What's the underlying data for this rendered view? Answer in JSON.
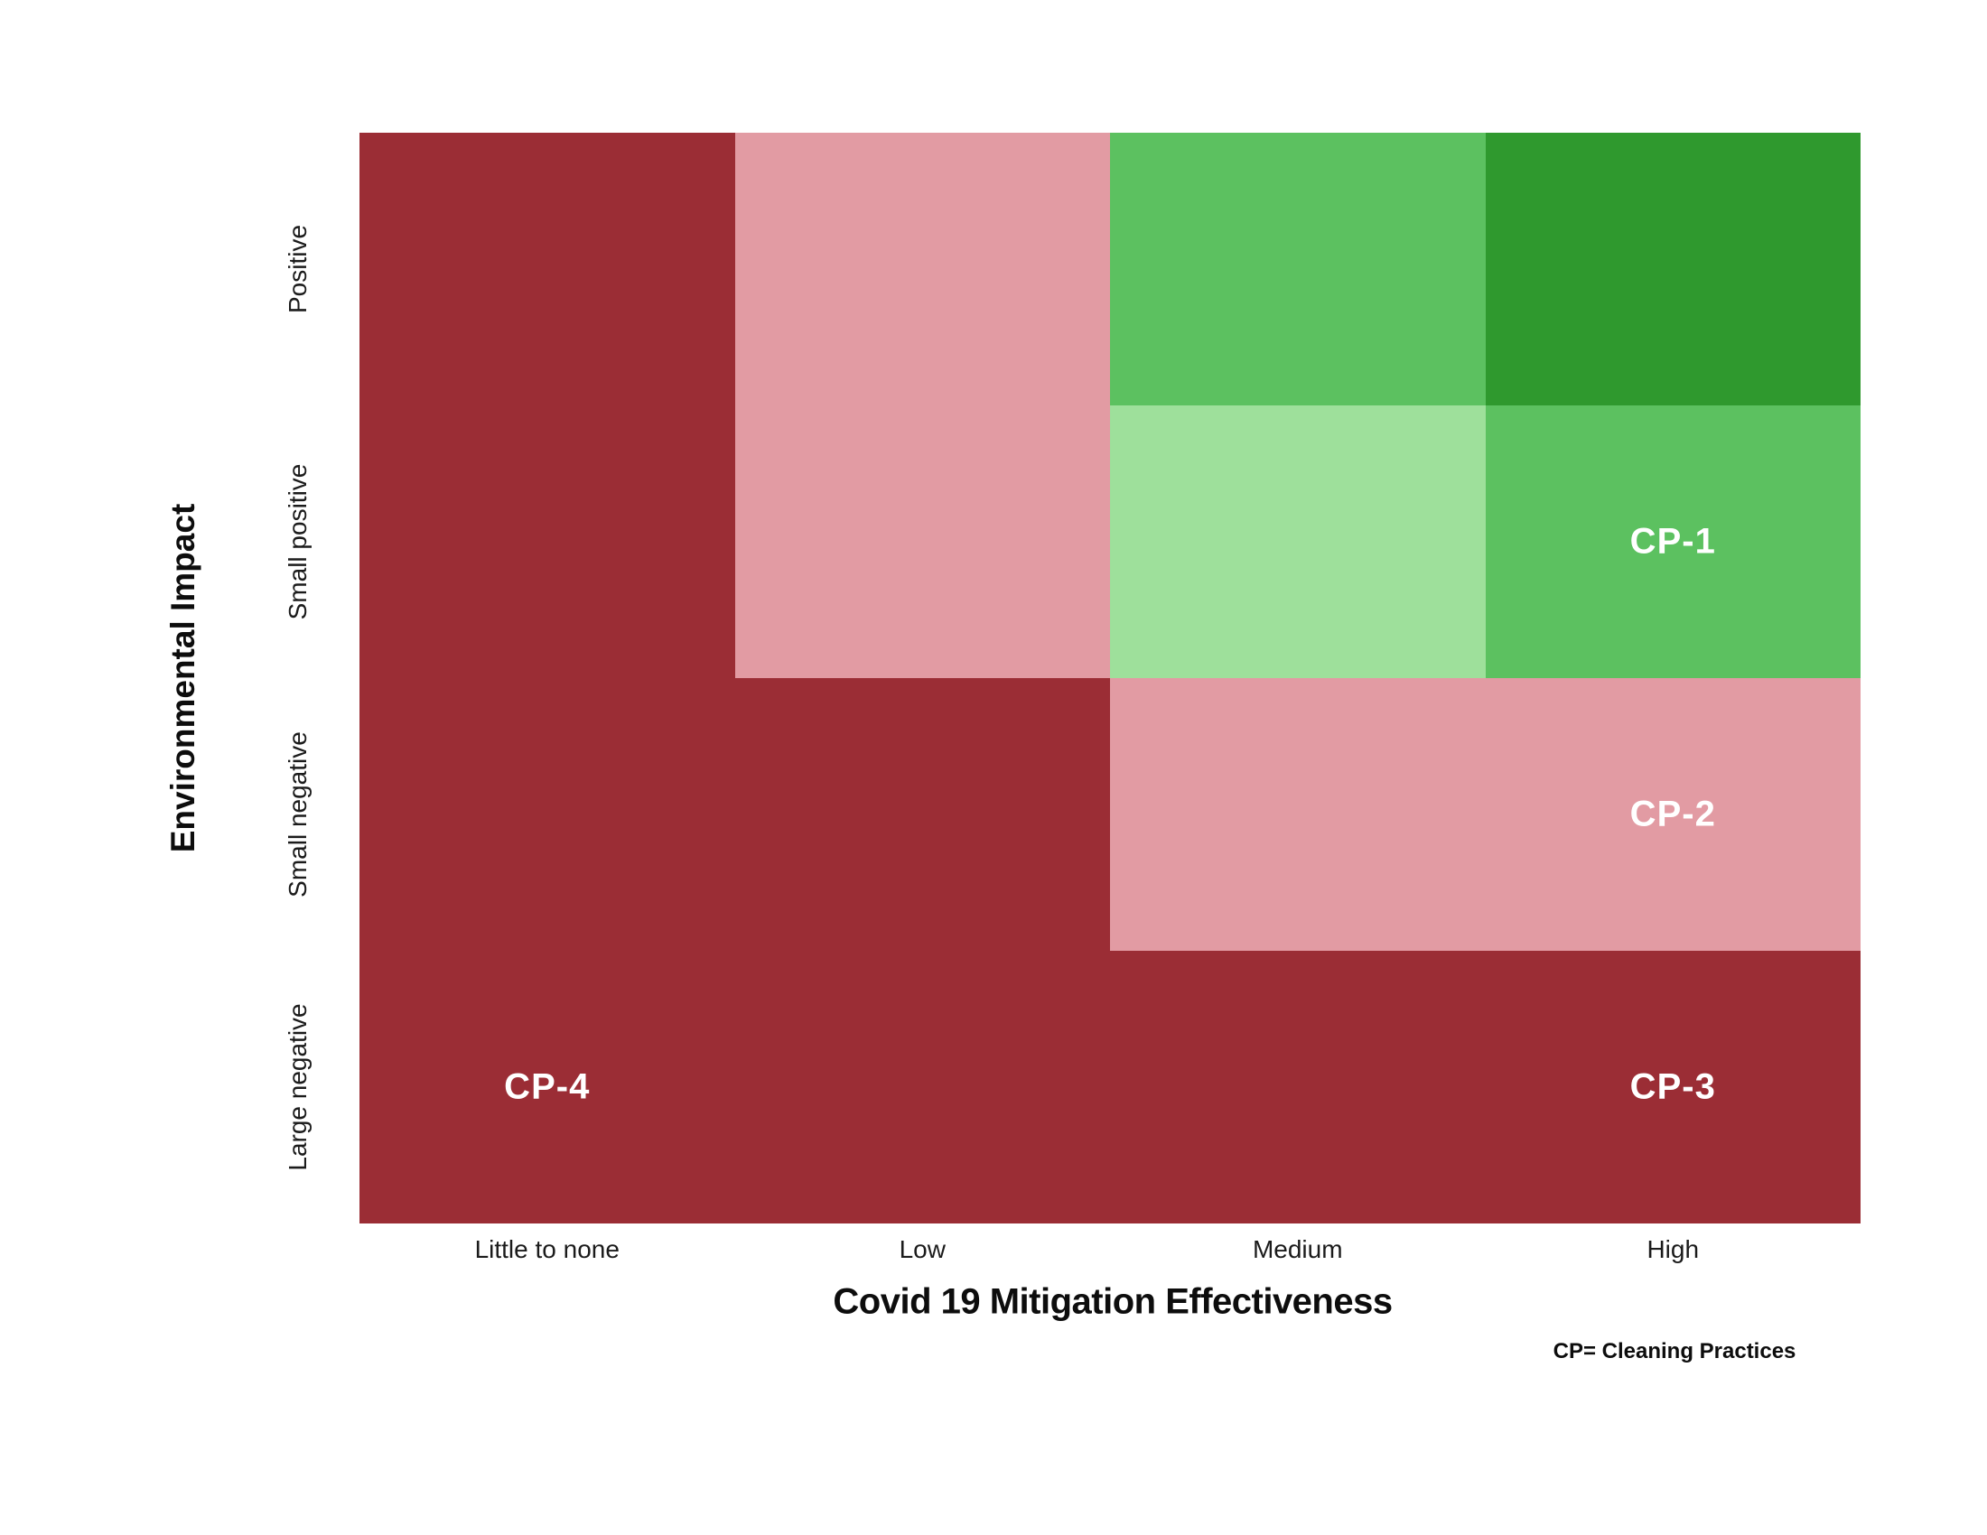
{
  "chart_data": {
    "type": "heatmap",
    "xlabel": "Covid 19 Mitigation Effectiveness",
    "ylabel": "Environmental Impact",
    "x_ticks": [
      "Little to none",
      "Low",
      "Medium",
      "High"
    ],
    "y_ticks_top_to_bottom": [
      "Positive",
      "Small positive",
      "Small negative",
      "Large negative"
    ],
    "footnote": "CP= Cleaning Practices",
    "palette": {
      "dark_red": "#9B2D35",
      "pink": "#E29BA3",
      "medium_green": "#5CC160",
      "light_green": "#9EE09B",
      "dark_green": "#2F992E"
    },
    "label_color": "#ffffff",
    "cells": [
      [
        "dark_red",
        "pink",
        "medium_green",
        "dark_green"
      ],
      [
        "dark_red",
        "pink",
        "light_green",
        "medium_green"
      ],
      [
        "dark_red",
        "dark_red",
        "pink",
        "pink"
      ],
      [
        "dark_red",
        "dark_red",
        "dark_red",
        "dark_red"
      ]
    ],
    "annotations": [
      {
        "label": "CP-1",
        "row": 1,
        "col": 3
      },
      {
        "label": "CP-2",
        "row": 2,
        "col": 3
      },
      {
        "label": "CP-3",
        "row": 3,
        "col": 3
      },
      {
        "label": "CP-4",
        "row": 3,
        "col": 0
      }
    ],
    "legend_position": "none",
    "grid": false
  }
}
